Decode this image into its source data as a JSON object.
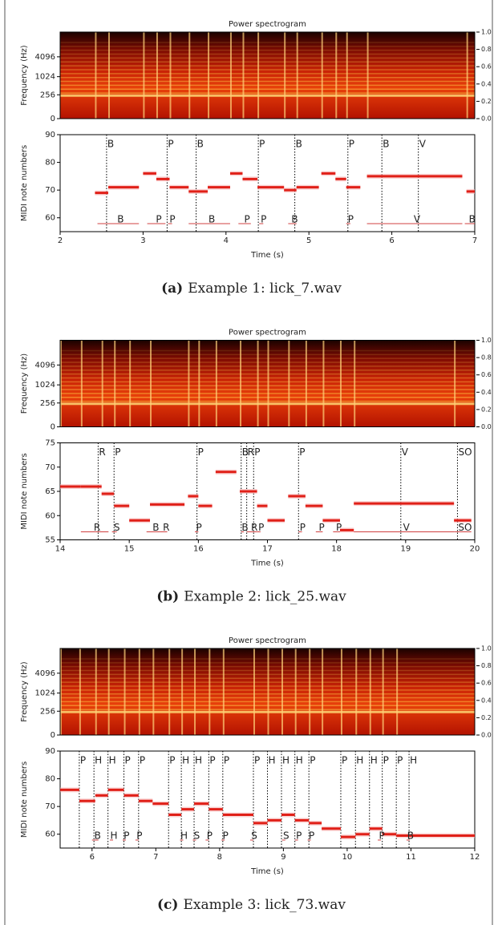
{
  "figures": [
    {
      "spectrogram": {
        "title": "Power spectrogram",
        "ylabel": "Frequency (Hz)",
        "ylim": [
          0,
          22050
        ],
        "yticks": [
          0,
          256,
          1024,
          4096
        ],
        "colorbar_ticks": [
          {
            "value": 0,
            "label": "0.0"
          },
          {
            "value": 0.2,
            "label": "0.2"
          },
          {
            "value": 0.4,
            "label": "0.4"
          },
          {
            "value": 0.6,
            "label": "0.6"
          },
          {
            "value": 0.8,
            "label": "0.8"
          },
          {
            "value": 1,
            "label": "1.0"
          }
        ]
      },
      "midi": {
        "ylabel": "MIDI note numbers",
        "xlabel": "Time (s)",
        "xlim": [
          2,
          7
        ],
        "xticks": [
          2,
          3,
          4,
          5,
          6,
          7
        ],
        "ylim": [
          55,
          90
        ],
        "yticks": [
          60,
          70,
          80,
          90
        ],
        "notes": [
          {
            "start": 2.42,
            "end": 2.58,
            "pitch": 69
          },
          {
            "start": 2.58,
            "end": 2.95,
            "pitch": 71
          },
          {
            "start": 3.0,
            "end": 3.16,
            "pitch": 76
          },
          {
            "start": 3.16,
            "end": 3.32,
            "pitch": 74
          },
          {
            "start": 3.32,
            "end": 3.55,
            "pitch": 71
          },
          {
            "start": 3.55,
            "end": 3.78,
            "pitch": 69.5
          },
          {
            "start": 3.78,
            "end": 4.05,
            "pitch": 71
          },
          {
            "start": 4.05,
            "end": 4.2,
            "pitch": 76
          },
          {
            "start": 4.2,
            "end": 4.38,
            "pitch": 74
          },
          {
            "start": 4.38,
            "end": 4.7,
            "pitch": 71
          },
          {
            "start": 4.7,
            "end": 4.85,
            "pitch": 70
          },
          {
            "start": 4.85,
            "end": 5.12,
            "pitch": 71
          },
          {
            "start": 5.15,
            "end": 5.32,
            "pitch": 76
          },
          {
            "start": 5.32,
            "end": 5.45,
            "pitch": 74
          },
          {
            "start": 5.45,
            "end": 5.62,
            "pitch": 71
          },
          {
            "start": 5.7,
            "end": 6.85,
            "pitch": 75
          },
          {
            "start": 6.9,
            "end": 7.0,
            "pitch": 69.5
          }
        ],
        "techniques": [
          {
            "time": 2.56,
            "label": "B"
          },
          {
            "time": 3.29,
            "label": "P"
          },
          {
            "time": 3.64,
            "label": "B"
          },
          {
            "time": 4.39,
            "label": "P"
          },
          {
            "time": 4.83,
            "label": "B"
          },
          {
            "time": 5.47,
            "label": "P"
          },
          {
            "time": 5.88,
            "label": "B"
          },
          {
            "time": 6.32,
            "label": "V"
          }
        ],
        "annotations": [
          {
            "start": 2.45,
            "end": 2.95,
            "label": "B"
          },
          {
            "start": 3.05,
            "end": 3.27,
            "label": "P"
          },
          {
            "start": 3.3,
            "end": 3.35,
            "label": "P"
          },
          {
            "start": 3.55,
            "end": 4.05,
            "label": "B"
          },
          {
            "start": 4.15,
            "end": 4.3,
            "label": "P"
          },
          {
            "start": 4.4,
            "end": 4.45,
            "label": "P"
          },
          {
            "start": 4.75,
            "end": 4.85,
            "label": "B"
          },
          {
            "start": 5.45,
            "end": 5.5,
            "label": "P"
          },
          {
            "start": 5.7,
            "end": 6.85,
            "label": "V"
          },
          {
            "start": 6.88,
            "end": 7.0,
            "label": "B"
          }
        ]
      },
      "caption": {
        "label": "(a)",
        "text": "Example 1: lick_7.wav"
      }
    },
    {
      "spectrogram": {
        "title": "Power spectrogram",
        "ylabel": "Frequency (Hz)",
        "ylim": [
          0,
          22050
        ],
        "yticks": [
          0,
          256,
          1024,
          4096
        ],
        "colorbar_ticks": [
          {
            "value": 0,
            "label": "0.0"
          },
          {
            "value": 0.2,
            "label": "0.2"
          },
          {
            "value": 0.4,
            "label": "0.4"
          },
          {
            "value": 0.6,
            "label": "0.6"
          },
          {
            "value": 0.8,
            "label": "0.8"
          },
          {
            "value": 1,
            "label": "1.0"
          }
        ]
      },
      "midi": {
        "ylabel": "MIDI note numbers",
        "xlabel": "Time (s)",
        "xlim": [
          14,
          20
        ],
        "xticks": [
          14,
          15,
          16,
          17,
          18,
          19,
          20
        ],
        "ylim": [
          55,
          75
        ],
        "yticks": [
          55,
          60,
          65,
          70,
          75
        ],
        "notes": [
          {
            "start": 14.0,
            "end": 14.3,
            "pitch": 66
          },
          {
            "start": 14.3,
            "end": 14.6,
            "pitch": 66
          },
          {
            "start": 14.6,
            "end": 14.78,
            "pitch": 64.5
          },
          {
            "start": 14.78,
            "end": 15.0,
            "pitch": 62
          },
          {
            "start": 15.0,
            "end": 15.3,
            "pitch": 59
          },
          {
            "start": 15.3,
            "end": 15.8,
            "pitch": 62.3
          },
          {
            "start": 15.85,
            "end": 16.0,
            "pitch": 64
          },
          {
            "start": 16.0,
            "end": 16.2,
            "pitch": 62
          },
          {
            "start": 16.25,
            "end": 16.55,
            "pitch": 69
          },
          {
            "start": 16.6,
            "end": 16.85,
            "pitch": 65
          },
          {
            "start": 16.85,
            "end": 17.0,
            "pitch": 62
          },
          {
            "start": 17.0,
            "end": 17.25,
            "pitch": 59
          },
          {
            "start": 17.3,
            "end": 17.55,
            "pitch": 64
          },
          {
            "start": 17.55,
            "end": 17.8,
            "pitch": 62
          },
          {
            "start": 17.8,
            "end": 18.05,
            "pitch": 59
          },
          {
            "start": 18.05,
            "end": 18.25,
            "pitch": 57
          },
          {
            "start": 18.25,
            "end": 19.7,
            "pitch": 62.5
          },
          {
            "start": 19.7,
            "end": 19.95,
            "pitch": 59
          }
        ],
        "techniques": [
          {
            "time": 14.55,
            "label": "R"
          },
          {
            "time": 14.78,
            "label": "P"
          },
          {
            "time": 15.98,
            "label": "P"
          },
          {
            "time": 16.62,
            "label": "B"
          },
          {
            "time": 16.7,
            "label": "R"
          },
          {
            "time": 16.8,
            "label": "P"
          },
          {
            "time": 17.45,
            "label": "P"
          },
          {
            "time": 18.93,
            "label": "V"
          },
          {
            "time": 19.75,
            "label": "SO"
          }
        ],
        "annotations": [
          {
            "start": 14.3,
            "end": 14.7,
            "label": "R"
          },
          {
            "start": 14.75,
            "end": 14.82,
            "label": "S"
          },
          {
            "start": 15.25,
            "end": 15.45,
            "label": "B"
          },
          {
            "start": 15.45,
            "end": 15.55,
            "label": "R"
          },
          {
            "start": 15.95,
            "end": 16.0,
            "label": "P"
          },
          {
            "start": 16.62,
            "end": 16.66,
            "label": "B"
          },
          {
            "start": 16.7,
            "end": 16.85,
            "label": "R"
          },
          {
            "start": 16.85,
            "end": 16.9,
            "label": "P"
          },
          {
            "start": 17.45,
            "end": 17.5,
            "label": "P"
          },
          {
            "start": 17.7,
            "end": 17.8,
            "label": "P"
          },
          {
            "start": 17.95,
            "end": 18.05,
            "label": "P"
          },
          {
            "start": 18.25,
            "end": 19.7,
            "label": "V"
          },
          {
            "start": 19.7,
            "end": 19.95,
            "label": "SO"
          }
        ]
      },
      "caption": {
        "label": "(b)",
        "text": "Example 2: lick_25.wav"
      }
    },
    {
      "spectrogram": {
        "title": "Power spectrogram",
        "ylabel": "Frequency (Hz)",
        "ylim": [
          0,
          22050
        ],
        "yticks": [
          0,
          256,
          1024,
          4096
        ],
        "colorbar_ticks": [
          {
            "value": 0,
            "label": "0.0"
          },
          {
            "value": 0.2,
            "label": "0.2"
          },
          {
            "value": 0.4,
            "label": "0.4"
          },
          {
            "value": 0.6,
            "label": "0.6"
          },
          {
            "value": 0.8,
            "label": "0.8"
          },
          {
            "value": 1,
            "label": "1.0"
          }
        ]
      },
      "midi": {
        "ylabel": "MIDI note numbers",
        "xlabel": "Time (s)",
        "xlim": [
          5.5,
          12
        ],
        "xticks": [
          6,
          7,
          8,
          9,
          10,
          11,
          12
        ],
        "ylim": [
          55,
          90
        ],
        "yticks": [
          60,
          70,
          80,
          90
        ],
        "notes": [
          {
            "start": 5.5,
            "end": 5.8,
            "pitch": 76
          },
          {
            "start": 5.8,
            "end": 6.05,
            "pitch": 72
          },
          {
            "start": 6.05,
            "end": 6.25,
            "pitch": 74
          },
          {
            "start": 6.25,
            "end": 6.5,
            "pitch": 76
          },
          {
            "start": 6.5,
            "end": 6.73,
            "pitch": 74
          },
          {
            "start": 6.73,
            "end": 6.95,
            "pitch": 72
          },
          {
            "start": 6.95,
            "end": 7.2,
            "pitch": 71
          },
          {
            "start": 7.2,
            "end": 7.4,
            "pitch": 67
          },
          {
            "start": 7.4,
            "end": 7.6,
            "pitch": 69
          },
          {
            "start": 7.6,
            "end": 7.83,
            "pitch": 71
          },
          {
            "start": 7.83,
            "end": 8.05,
            "pitch": 69
          },
          {
            "start": 8.05,
            "end": 8.53,
            "pitch": 67
          },
          {
            "start": 8.53,
            "end": 8.75,
            "pitch": 64
          },
          {
            "start": 8.75,
            "end": 8.97,
            "pitch": 65
          },
          {
            "start": 8.97,
            "end": 9.18,
            "pitch": 67
          },
          {
            "start": 9.18,
            "end": 9.4,
            "pitch": 65
          },
          {
            "start": 9.4,
            "end": 9.6,
            "pitch": 64
          },
          {
            "start": 9.6,
            "end": 9.9,
            "pitch": 62
          },
          {
            "start": 9.9,
            "end": 10.13,
            "pitch": 59
          },
          {
            "start": 10.13,
            "end": 10.35,
            "pitch": 60
          },
          {
            "start": 10.35,
            "end": 10.55,
            "pitch": 62
          },
          {
            "start": 10.55,
            "end": 10.77,
            "pitch": 60
          },
          {
            "start": 10.77,
            "end": 12.0,
            "pitch": 59.5
          }
        ],
        "techniques": [
          {
            "time": 5.8,
            "label": "P"
          },
          {
            "time": 6.03,
            "label": "H"
          },
          {
            "time": 6.25,
            "label": "H"
          },
          {
            "time": 6.5,
            "label": "P"
          },
          {
            "time": 6.73,
            "label": "P"
          },
          {
            "time": 7.2,
            "label": "P"
          },
          {
            "time": 7.4,
            "label": "H"
          },
          {
            "time": 7.6,
            "label": "H"
          },
          {
            "time": 7.83,
            "label": "P"
          },
          {
            "time": 8.05,
            "label": "P"
          },
          {
            "time": 8.53,
            "label": "P"
          },
          {
            "time": 8.75,
            "label": "H"
          },
          {
            "time": 8.97,
            "label": "H"
          },
          {
            "time": 9.18,
            "label": "H"
          },
          {
            "time": 9.4,
            "label": "P"
          },
          {
            "time": 9.9,
            "label": "P"
          },
          {
            "time": 10.13,
            "label": "H"
          },
          {
            "time": 10.35,
            "label": "H"
          },
          {
            "time": 10.55,
            "label": "P"
          },
          {
            "time": 10.77,
            "label": "P"
          },
          {
            "time": 10.97,
            "label": "H"
          }
        ],
        "annotations": [
          {
            "start": 6.0,
            "end": 6.1,
            "label": "B"
          },
          {
            "start": 6.28,
            "end": 6.33,
            "label": "H"
          },
          {
            "start": 6.48,
            "end": 6.53,
            "label": "P"
          },
          {
            "start": 6.68,
            "end": 6.73,
            "label": "P"
          },
          {
            "start": 7.38,
            "end": 7.43,
            "label": "H"
          },
          {
            "start": 7.58,
            "end": 7.63,
            "label": "S"
          },
          {
            "start": 7.78,
            "end": 7.83,
            "label": "P"
          },
          {
            "start": 8.03,
            "end": 8.08,
            "label": "P"
          },
          {
            "start": 8.48,
            "end": 8.53,
            "label": "S"
          },
          {
            "start": 8.98,
            "end": 9.03,
            "label": "S"
          },
          {
            "start": 9.18,
            "end": 9.23,
            "label": "P"
          },
          {
            "start": 9.38,
            "end": 9.43,
            "label": "P"
          },
          {
            "start": 10.48,
            "end": 10.53,
            "label": "P"
          },
          {
            "start": 10.93,
            "end": 10.98,
            "label": "B"
          }
        ]
      },
      "caption": {
        "label": "(c)",
        "text": "Example 3: lick_73.wav"
      }
    }
  ]
}
